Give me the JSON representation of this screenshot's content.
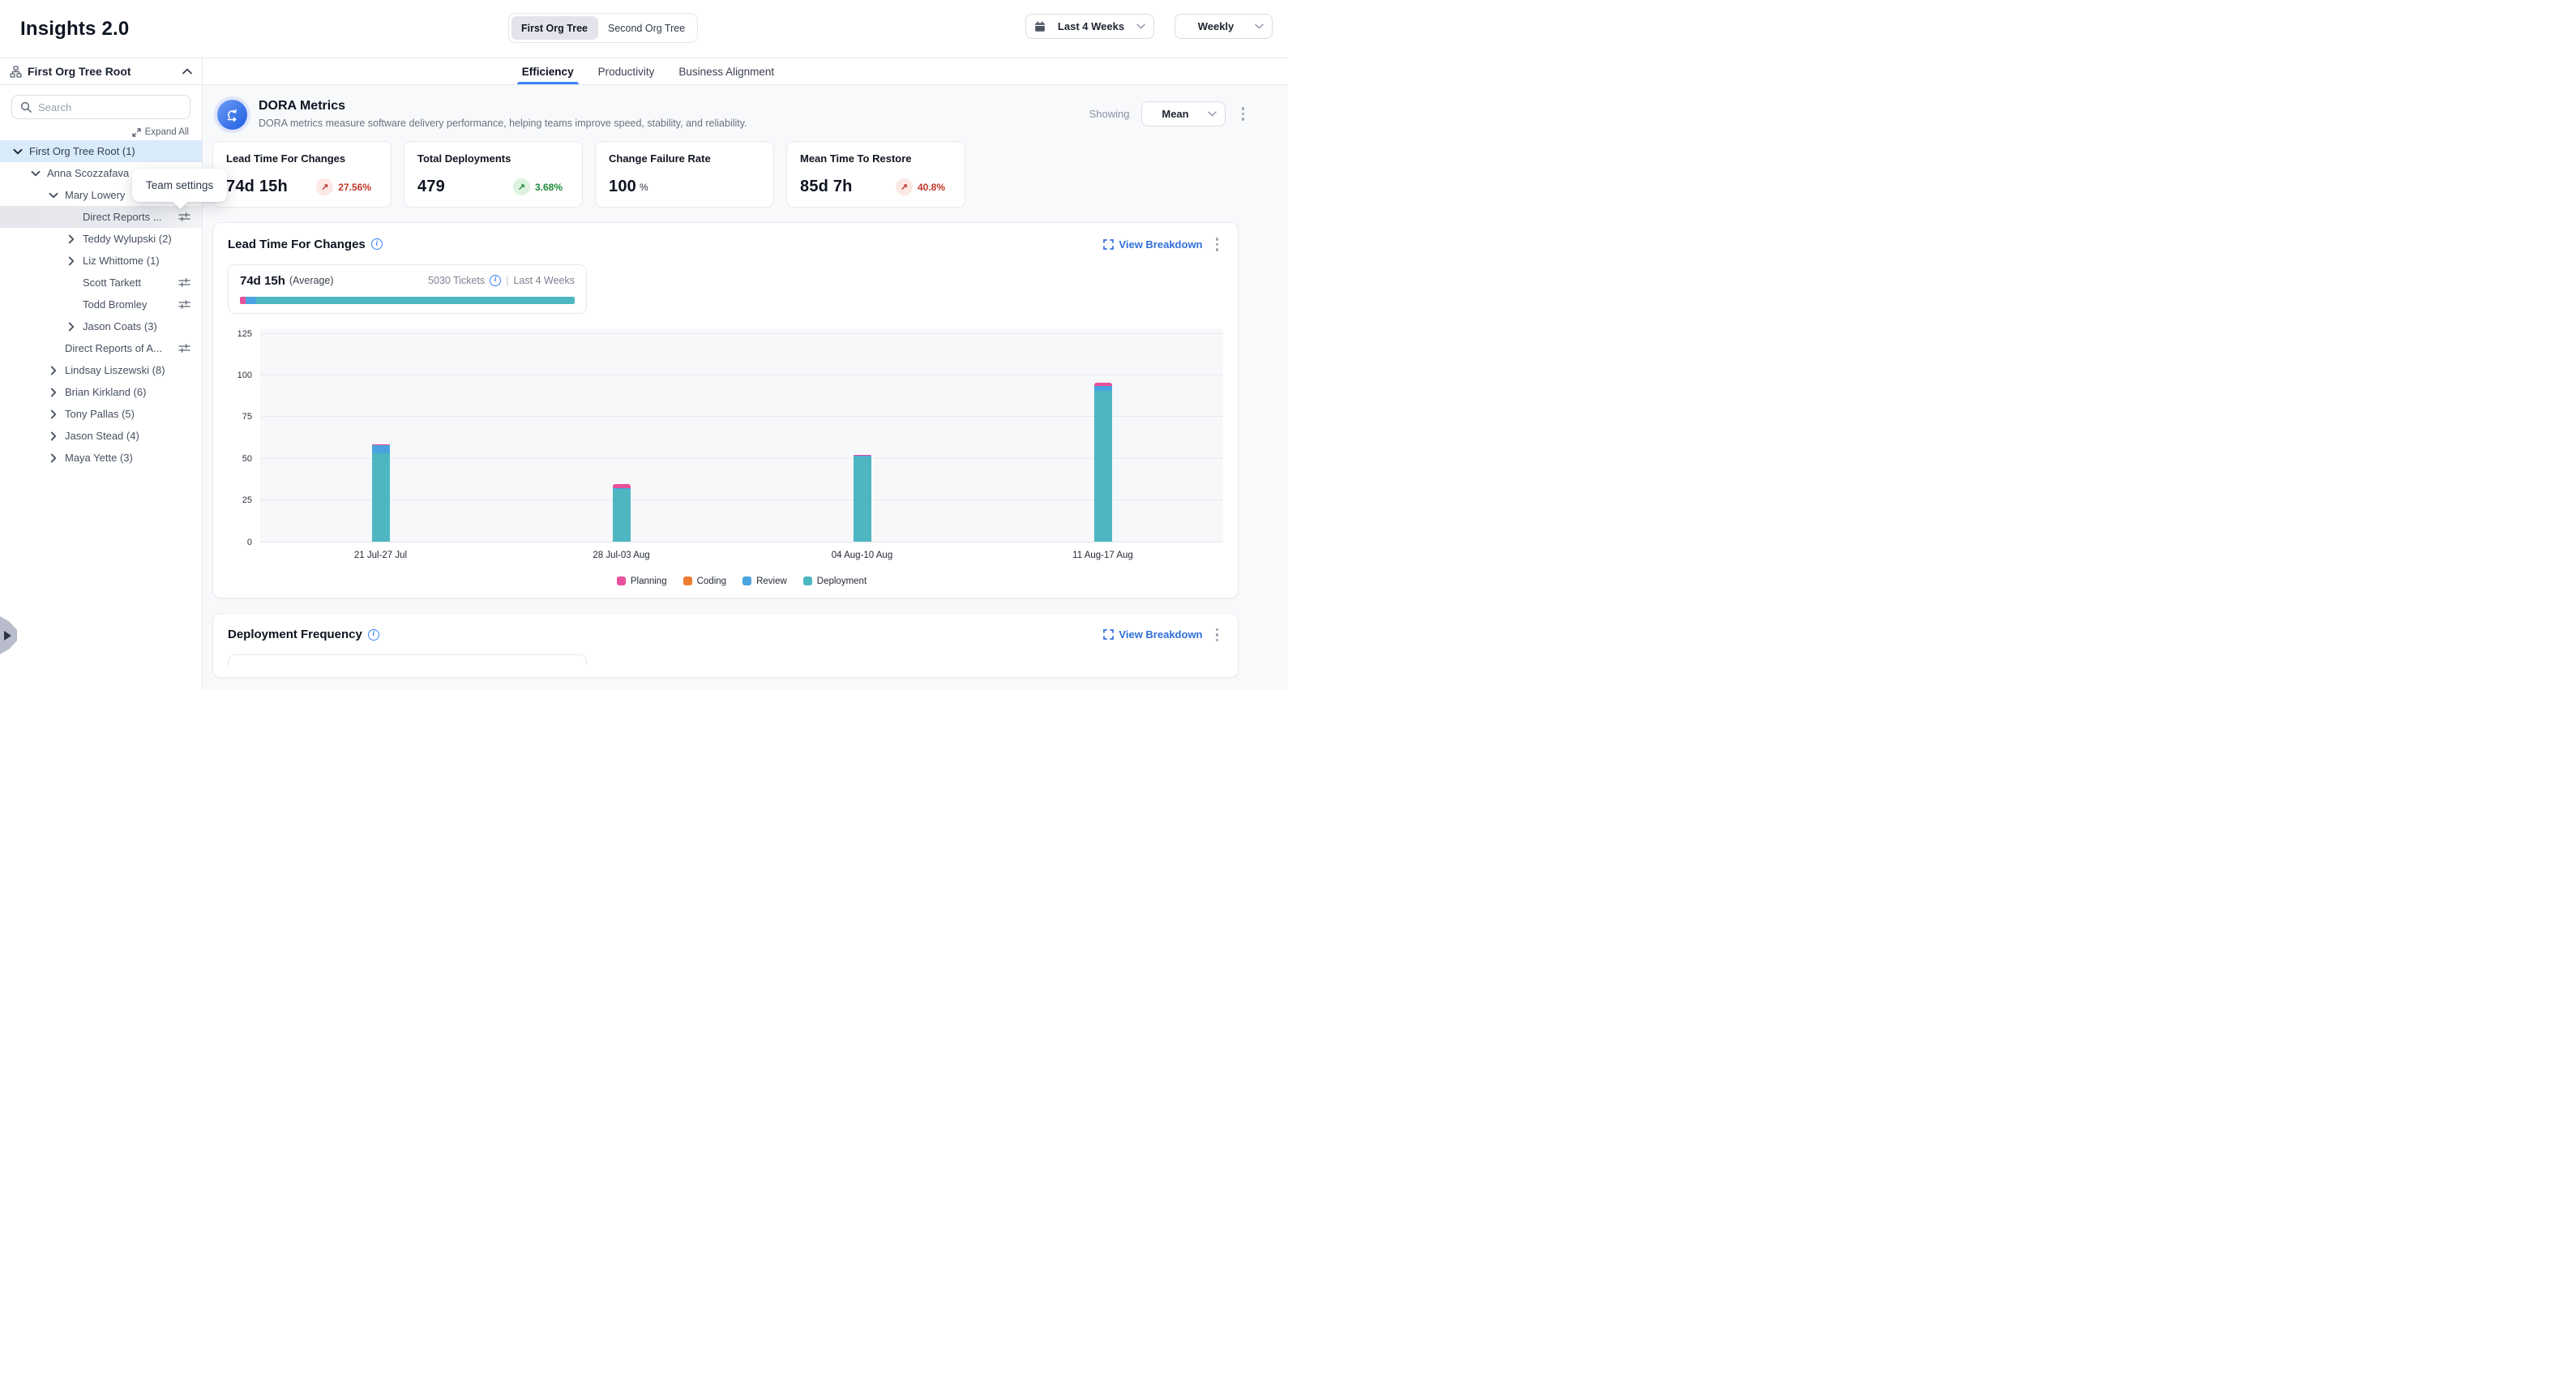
{
  "colors": {
    "accent_blue": "#3b82f6",
    "link_blue": "#3170d9",
    "negative_red": "#c2362b",
    "positive_green": "#1e8c3a",
    "selected_row_blue": "#d9eafb",
    "planning": "#e8509b",
    "coding": "#ee7d32",
    "review": "#4aa3e0",
    "deployment": "#4db6c1"
  },
  "header": {
    "app_title": "Insights 2.0",
    "org_toggle": [
      {
        "label": "First Org Tree",
        "active": true
      },
      {
        "label": "Second Org Tree",
        "active": false
      }
    ],
    "date_range": "Last 4 Weeks",
    "granularity": "Weekly"
  },
  "sidebar": {
    "root_label": "First Org Tree Root",
    "search_placeholder": "Search",
    "expand_all_label": "Expand All",
    "tree": [
      {
        "label": "First Org Tree Root (1)",
        "level": 0,
        "expander": "down",
        "settings": false,
        "state": "selected"
      },
      {
        "label": "Anna Scozzafava",
        "level": 1,
        "expander": "down",
        "settings": false,
        "state": ""
      },
      {
        "label": "Mary Lowery",
        "level": 2,
        "expander": "down",
        "settings": false,
        "state": ""
      },
      {
        "label": "Direct Reports ...",
        "level": 3,
        "expander": "none",
        "settings": true,
        "state": "highlighted"
      },
      {
        "label": "Teddy Wylupski (2)",
        "level": 3,
        "expander": "right",
        "settings": false,
        "state": ""
      },
      {
        "label": "Liz Whittome (1)",
        "level": 3,
        "expander": "right",
        "settings": false,
        "state": ""
      },
      {
        "label": "Scott Tarkett",
        "level": 3,
        "expander": "none",
        "settings": true,
        "state": ""
      },
      {
        "label": "Todd Bromley",
        "level": 3,
        "expander": "none",
        "settings": true,
        "state": ""
      },
      {
        "label": "Jason Coats (3)",
        "level": 3,
        "expander": "right",
        "settings": false,
        "state": ""
      },
      {
        "label": "Direct Reports of A...",
        "level": 2,
        "expander": "none",
        "settings": true,
        "state": ""
      },
      {
        "label": "Lindsay Liszewski (8)",
        "level": 2,
        "expander": "right",
        "settings": false,
        "state": ""
      },
      {
        "label": "Brian Kirkland (6)",
        "level": 2,
        "expander": "right",
        "settings": false,
        "state": ""
      },
      {
        "label": "Tony Pallas (5)",
        "level": 2,
        "expander": "right",
        "settings": false,
        "state": ""
      },
      {
        "label": "Jason Stead (4)",
        "level": 2,
        "expander": "right",
        "settings": false,
        "state": ""
      },
      {
        "label": "Maya Yette (3)",
        "level": 2,
        "expander": "right",
        "settings": false,
        "state": ""
      }
    ],
    "tooltip": "Team settings"
  },
  "tabs": [
    {
      "label": "Efficiency",
      "active": true
    },
    {
      "label": "Productivity",
      "active": false
    },
    {
      "label": "Business Alignment",
      "active": false
    }
  ],
  "dora": {
    "title": "DORA Metrics",
    "subtitle": "DORA metrics measure software delivery performance, helping teams improve speed, stability, and reliability.",
    "showing_label": "Showing",
    "showing_value": "Mean",
    "cards": [
      {
        "title": "Lead Time For Changes",
        "value": "74d 15h",
        "unit": "",
        "trend": {
          "direction": "up",
          "pct": "27.56%",
          "tone": "bad"
        }
      },
      {
        "title": "Total Deployments",
        "value": "479",
        "unit": "",
        "trend": {
          "direction": "up",
          "pct": "3.68%",
          "tone": "good"
        }
      },
      {
        "title": "Change Failure Rate",
        "value": "100",
        "unit": "%",
        "trend": null
      },
      {
        "title": "Mean Time To Restore",
        "value": "85d 7h",
        "unit": "",
        "trend": {
          "direction": "up",
          "pct": "40.8%",
          "tone": "bad"
        }
      }
    ]
  },
  "lead_panel": {
    "title": "Lead Time For Changes",
    "view_breakdown_label": "View Breakdown",
    "summary": {
      "value": "74d 15h",
      "qualifier": "(Average)",
      "tickets": "5030 Tickets",
      "divider": "|",
      "period": "Last 4 Weeks",
      "stack_pct": {
        "Planning": 1.6,
        "Coding": 0,
        "Review": 3.3,
        "Deployment": 95.1
      }
    },
    "chart_data": {
      "type": "bar",
      "stacked": true,
      "categories": [
        "21 Jul-27 Jul",
        "28 Jul-03 Aug",
        "04 Aug-10 Aug",
        "11 Aug-17 Aug"
      ],
      "series": [
        {
          "name": "Planning",
          "color": "#e8509b",
          "values": [
            0.8,
            2.5,
            0.9,
            2.0
          ]
        },
        {
          "name": "Coding",
          "color": "#ee7d32",
          "values": [
            0,
            0,
            0,
            0
          ]
        },
        {
          "name": "Review",
          "color": "#4aa3e0",
          "values": [
            4.5,
            0.5,
            0.3,
            3.0
          ]
        },
        {
          "name": "Deployment",
          "color": "#4db6c1",
          "values": [
            53.0,
            31.5,
            50.8,
            90.0
          ]
        }
      ],
      "stack_order_bottom_to_top": [
        "Deployment",
        "Review",
        "Coding",
        "Planning"
      ],
      "title": "Lead Time For Changes",
      "xlabel": "",
      "ylabel": "",
      "ylim": [
        0,
        125
      ],
      "yticks": [
        0,
        25,
        50,
        75,
        100,
        125
      ],
      "grid": true,
      "legend_position": "bottom",
      "legend": [
        "Planning",
        "Coding",
        "Review",
        "Deployment"
      ]
    }
  },
  "deployment_panel": {
    "title": "Deployment Frequency",
    "view_breakdown_label": "View Breakdown"
  }
}
